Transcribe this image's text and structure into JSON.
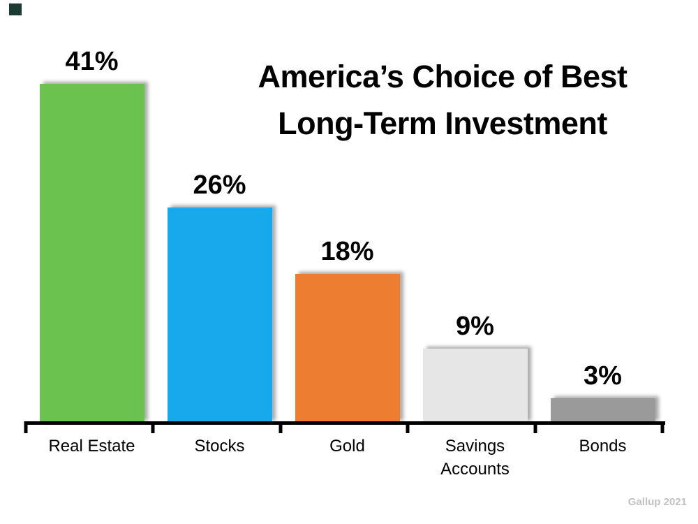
{
  "chart_data": {
    "type": "bar",
    "title": "America's Choice of Best Long-Term Investment",
    "title_lines": [
      "America’s Choice of Best",
      "Long-Term Investment"
    ],
    "categories": [
      "Real Estate",
      "Stocks",
      "Gold",
      "Savings Accounts",
      "Bonds"
    ],
    "values": [
      41,
      26,
      18,
      9,
      3
    ],
    "value_labels": [
      "41%",
      "26%",
      "18%",
      "9%",
      "3%"
    ],
    "bar_colors": [
      "#6CC24E",
      "#17A9EC",
      "#ED7D31",
      "#E6E6E6",
      "#9A9A9A"
    ],
    "ylim": [
      0,
      41
    ],
    "xlabel": "",
    "ylabel": "",
    "grid": false,
    "legend": "none",
    "axis_color": "#000000",
    "source": "Gallup 2021"
  },
  "decor": {
    "corner_mark_color": "#1B3B33"
  }
}
